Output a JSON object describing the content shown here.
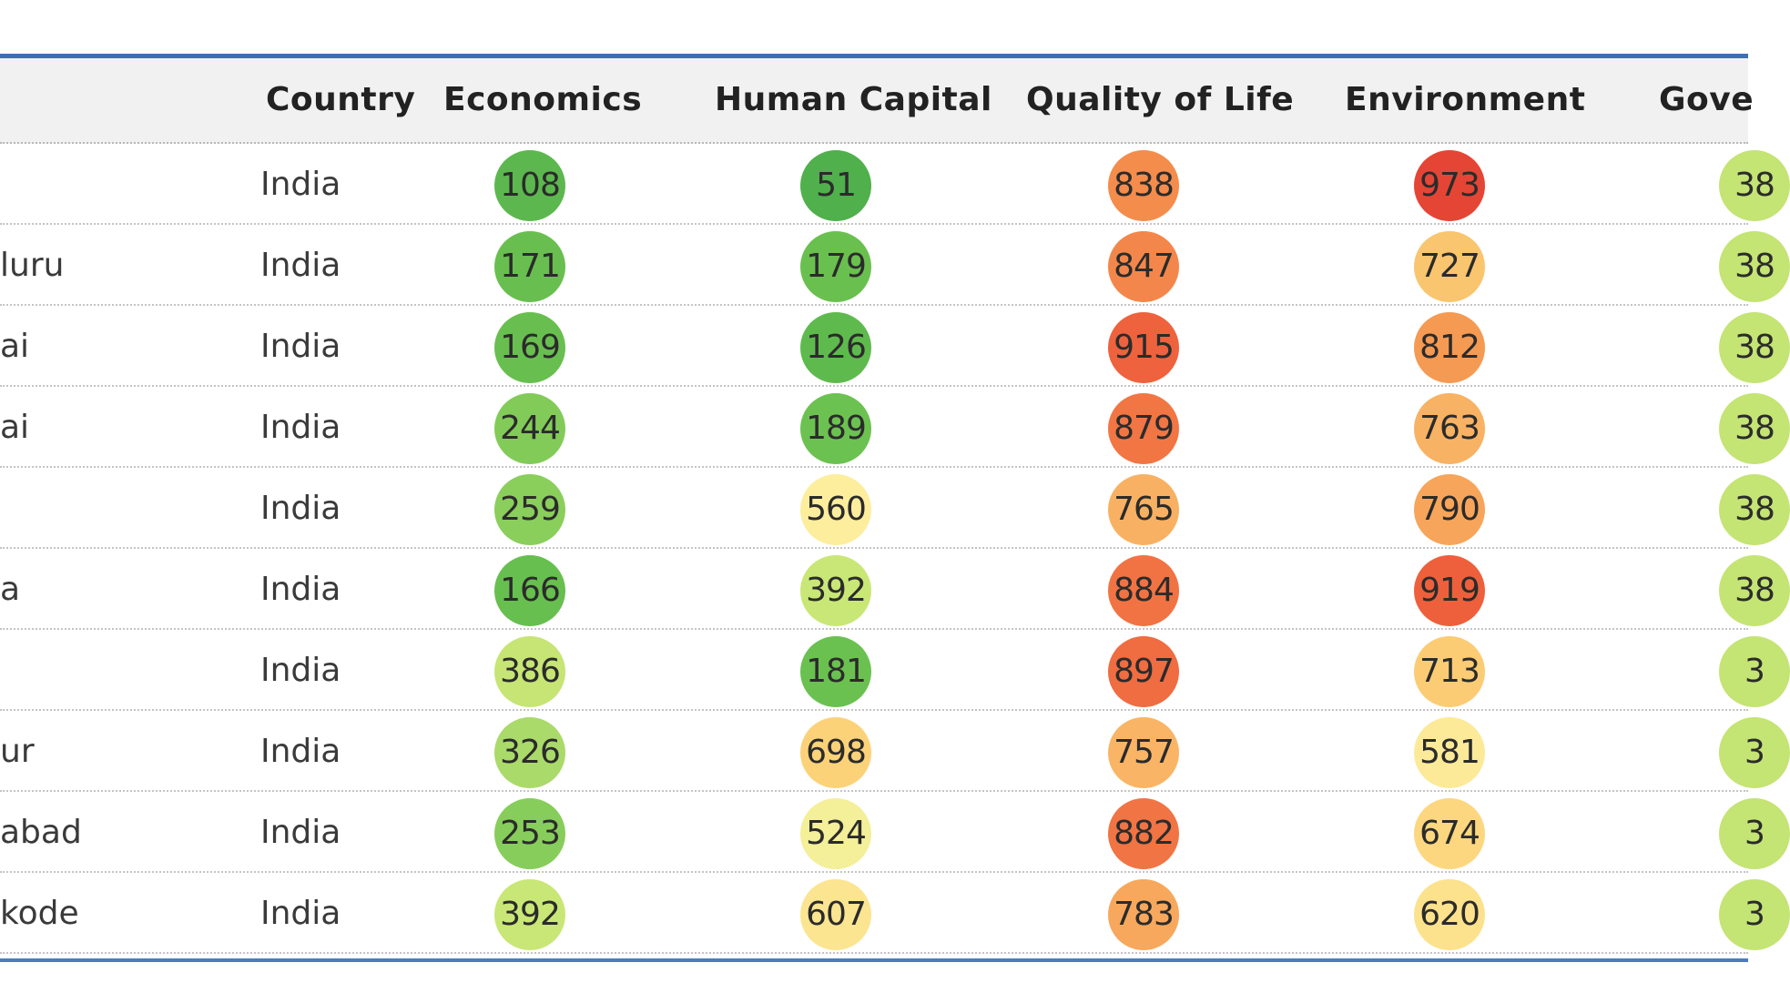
{
  "table": {
    "headers": [
      "Country",
      "Economics",
      "Human Capital",
      "Quality of Life",
      "Environment",
      "Gove"
    ],
    "rows": [
      {
        "city": "",
        "country": "India",
        "economics": "108",
        "human_capital": "51",
        "quality_of_life": "838",
        "environment": "973",
        "governance": "38"
      },
      {
        "city": "luru",
        "country": "India",
        "economics": "171",
        "human_capital": "179",
        "quality_of_life": "847",
        "environment": "727",
        "governance": "38"
      },
      {
        "city": "ai",
        "country": "India",
        "economics": "169",
        "human_capital": "126",
        "quality_of_life": "915",
        "environment": "812",
        "governance": "38"
      },
      {
        "city": "ai",
        "country": "India",
        "economics": "244",
        "human_capital": "189",
        "quality_of_life": "879",
        "environment": "763",
        "governance": "38"
      },
      {
        "city": "",
        "country": "India",
        "economics": "259",
        "human_capital": "560",
        "quality_of_life": "765",
        "environment": "790",
        "governance": "38"
      },
      {
        "city": "a",
        "country": "India",
        "economics": "166",
        "human_capital": "392",
        "quality_of_life": "884",
        "environment": "919",
        "governance": "38"
      },
      {
        "city": "",
        "country": "India",
        "economics": "386",
        "human_capital": "181",
        "quality_of_life": "897",
        "environment": "713",
        "governance": "3"
      },
      {
        "city": "ur",
        "country": "India",
        "economics": "326",
        "human_capital": "698",
        "quality_of_life": "757",
        "environment": "581",
        "governance": "3"
      },
      {
        "city": "abad",
        "country": "India",
        "economics": "253",
        "human_capital": "524",
        "quality_of_life": "882",
        "environment": "674",
        "governance": "3"
      },
      {
        "city": "kode",
        "country": "India",
        "economics": "392",
        "human_capital": "607",
        "quality_of_life": "783",
        "environment": "620",
        "governance": "3"
      }
    ]
  },
  "colors": {
    "frame_border": "#3d70b2",
    "header_bg": "#f1f1f1"
  }
}
